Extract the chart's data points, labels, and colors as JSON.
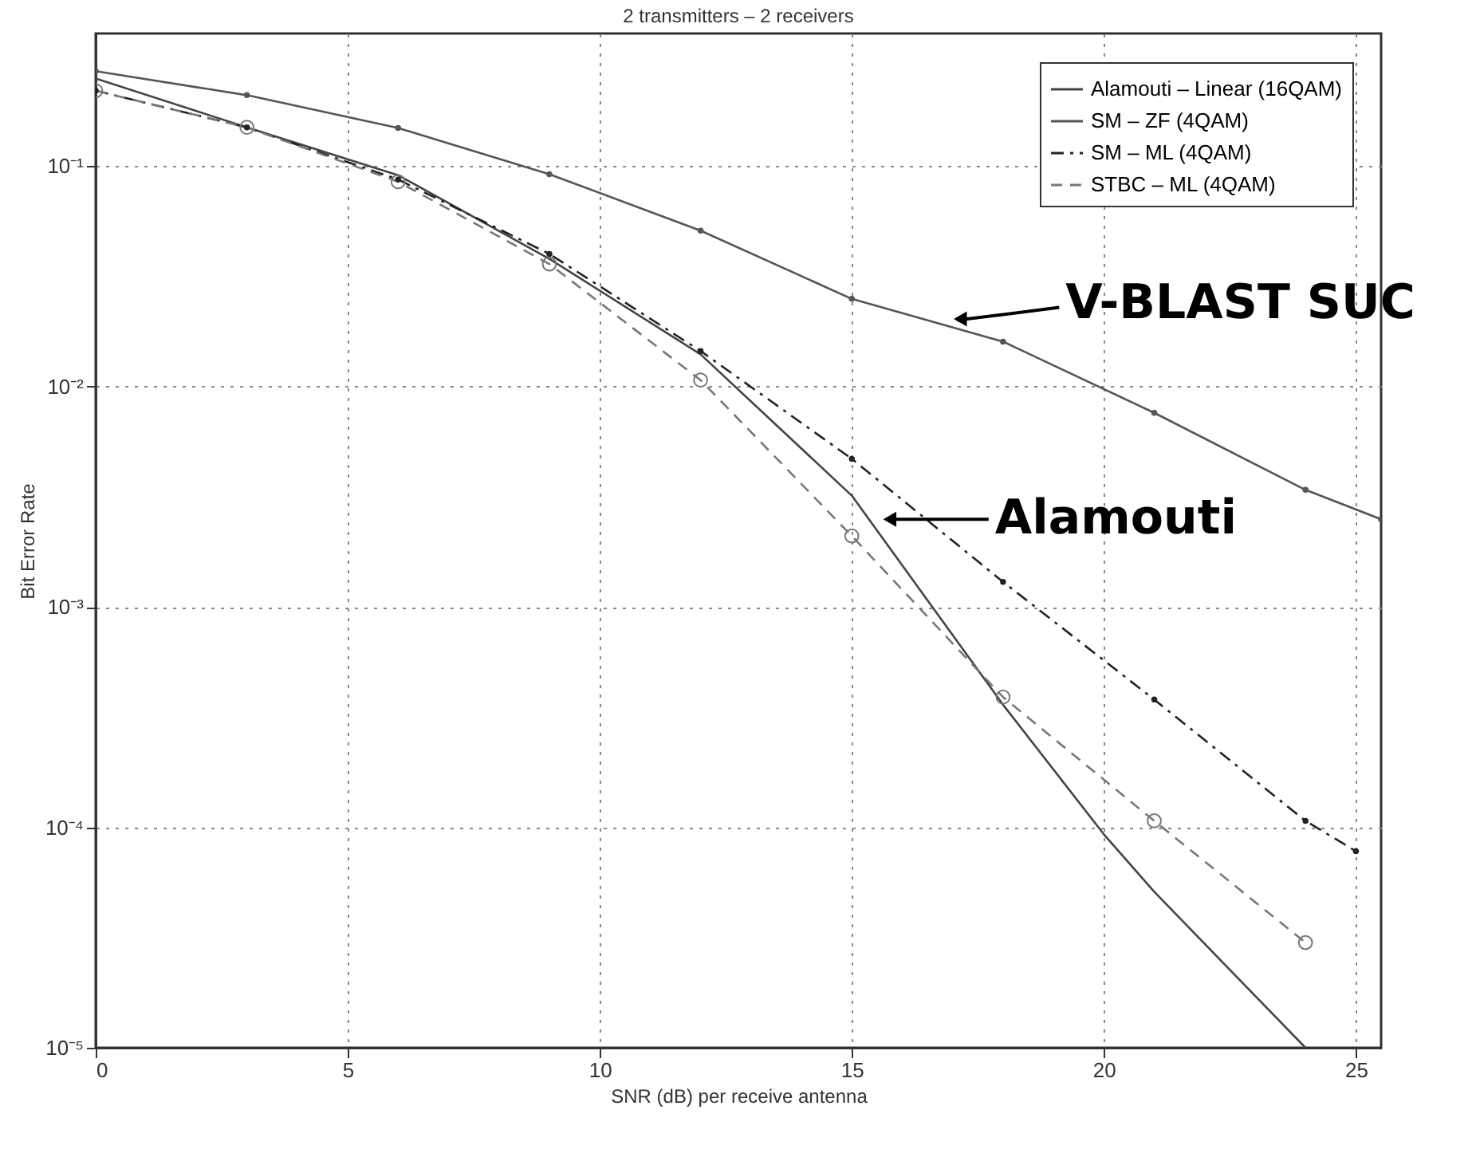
{
  "chart_data": {
    "type": "line",
    "title": "2 transmitters – 2 receivers",
    "xlabel": "SNR (dB) per receive antenna",
    "ylabel": "Bit Error Rate",
    "log": "y",
    "grid": true,
    "legend": "top right",
    "xlim": [
      0,
      25.5
    ],
    "xticks": [
      0,
      5,
      10,
      15,
      20,
      25
    ],
    "ylim": [
      1e-05,
      0.4
    ],
    "yticks": [
      {
        "value": 1e-05,
        "label": "10⁻⁵"
      },
      {
        "value": 0.0001,
        "label": "10⁻⁴"
      },
      {
        "value": 0.001,
        "label": "10⁻³"
      },
      {
        "value": 0.01,
        "label": "10⁻²"
      },
      {
        "value": 0.1,
        "label": "10⁻¹"
      }
    ],
    "series": [
      {
        "name": "Alamouti – Linear (16QAM)",
        "color": "#444444",
        "line_style": "solid",
        "marker": "none",
        "x": [
          0,
          3,
          6,
          9,
          12,
          15,
          18,
          20,
          21,
          24
        ],
        "values": [
          0.25,
          0.15,
          0.091,
          0.038,
          0.014,
          0.0032,
          0.00036,
          9.3e-05,
          5.1e-05,
          1e-05
        ]
      },
      {
        "name": "SM – ZF (4QAM)",
        "color": "#555555",
        "line_style": "solid",
        "marker": "circle",
        "x": [
          0,
          3,
          6,
          9,
          12,
          15,
          18,
          21,
          24,
          25.5
        ],
        "values": [
          0.27,
          0.21,
          0.149,
          0.092,
          0.051,
          0.025,
          0.016,
          0.0076,
          0.0034,
          0.0025
        ]
      },
      {
        "name": "SM – ML (4QAM)",
        "color": "#222222",
        "line_style": "dashdot",
        "marker": "circle",
        "x": [
          0,
          3,
          6,
          9,
          12,
          15,
          18,
          21,
          24,
          25
        ],
        "values": [
          0.22,
          0.15,
          0.087,
          0.04,
          0.0145,
          0.0047,
          0.0013,
          0.00038,
          0.000107,
          7.8e-05
        ]
      },
      {
        "name": "STBC – ML (4QAM)",
        "color": "#777777",
        "line_style": "dashed",
        "marker": "circle_open",
        "x": [
          0,
          3,
          6,
          9,
          12,
          15,
          18,
          21,
          24
        ],
        "values": [
          0.22,
          0.15,
          0.085,
          0.036,
          0.0107,
          0.0021,
          0.00039,
          0.000107,
          3e-05
        ]
      }
    ],
    "annotations": [
      {
        "text": "V-BLAST SUC",
        "x": 16.9,
        "y": 0.02
      },
      {
        "text": "Alamouti",
        "x": 15.5,
        "y": 0.0025
      }
    ]
  }
}
